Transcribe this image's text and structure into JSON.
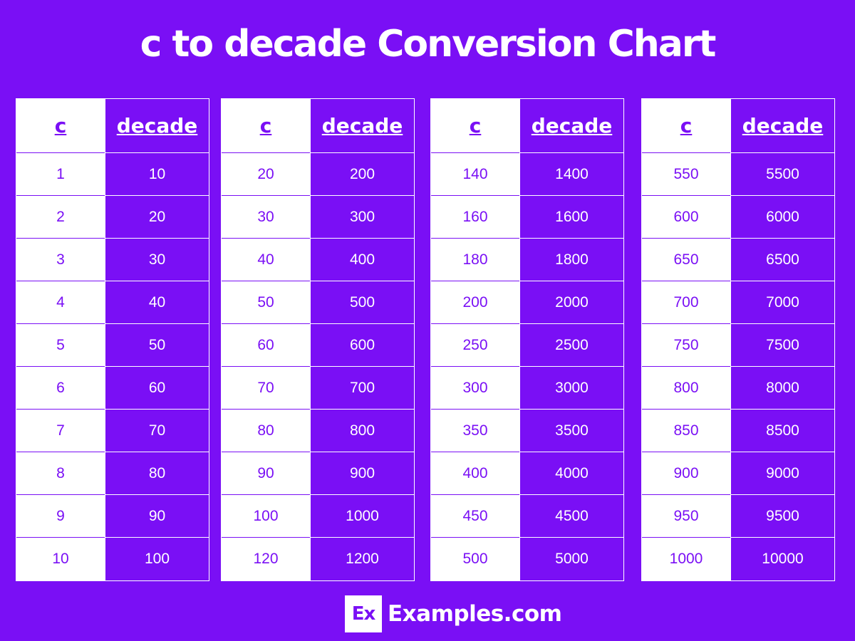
{
  "title": "c to decade Conversion Chart",
  "colors": {
    "background": "#7a0ff5",
    "white": "#ffffff"
  },
  "tables": [
    {
      "headers": [
        "c",
        "decade"
      ],
      "rows": [
        [
          "1",
          "10"
        ],
        [
          "2",
          "20"
        ],
        [
          "3",
          "30"
        ],
        [
          "4",
          "40"
        ],
        [
          "5",
          "50"
        ],
        [
          "6",
          "60"
        ],
        [
          "7",
          "70"
        ],
        [
          "8",
          "80"
        ],
        [
          "9",
          "90"
        ],
        [
          "10",
          "100"
        ]
      ]
    },
    {
      "headers": [
        "c",
        "decade"
      ],
      "rows": [
        [
          "20",
          "200"
        ],
        [
          "30",
          "300"
        ],
        [
          "40",
          "400"
        ],
        [
          "50",
          "500"
        ],
        [
          "60",
          "600"
        ],
        [
          "70",
          "700"
        ],
        [
          "80",
          "800"
        ],
        [
          "90",
          "900"
        ],
        [
          "100",
          "1000"
        ],
        [
          "120",
          "1200"
        ]
      ]
    },
    {
      "headers": [
        "c",
        "decade"
      ],
      "rows": [
        [
          "140",
          "1400"
        ],
        [
          "160",
          "1600"
        ],
        [
          "180",
          "1800"
        ],
        [
          "200",
          "2000"
        ],
        [
          "250",
          "2500"
        ],
        [
          "300",
          "3000"
        ],
        [
          "350",
          "3500"
        ],
        [
          "400",
          "4000"
        ],
        [
          "450",
          "4500"
        ],
        [
          "500",
          "5000"
        ]
      ]
    },
    {
      "headers": [
        "c",
        "decade"
      ],
      "rows": [
        [
          "550",
          "5500"
        ],
        [
          "600",
          "6000"
        ],
        [
          "650",
          "6500"
        ],
        [
          "700",
          "7000"
        ],
        [
          "750",
          "7500"
        ],
        [
          "800",
          "8000"
        ],
        [
          "850",
          "8500"
        ],
        [
          "900",
          "9000"
        ],
        [
          "950",
          "9500"
        ],
        [
          "1000",
          "10000"
        ]
      ]
    }
  ],
  "footer": {
    "logo_text": "Ex",
    "brand": "Examples.com",
    "icon": "examples-logo-icon"
  }
}
